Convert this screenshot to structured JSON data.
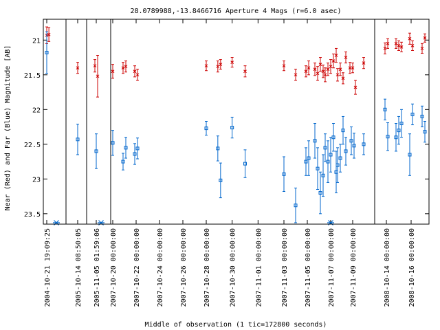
{
  "chart_data": {
    "type": "scatter",
    "title": "28.0789988,-13.8466716   Aperture 4 Mags (r=6.0 asec)",
    "xlabel": "Middle of observation (1 tic=172800 seconds)",
    "ylabel": "Near (Red) and Far (Blue) Magnitude [AB]",
    "y_inverted": true,
    "ylim": [
      20.7,
      23.65
    ],
    "y_ticks": [
      "21",
      "21.5",
      "22",
      "22.5",
      "23",
      "23.5"
    ],
    "x_tick_labels": [
      "2004-10-21 19:09:25",
      "2005-10-14 08:50:05",
      "2005-11-05 01:59:06",
      "2007-10-20 00:00:00",
      "2007-10-22 00:00:00",
      "2007-10-24 00:00:00",
      "2007-10-26 00:00:00",
      "2007-10-28 00:00:00",
      "2007-10-30 00:00:00",
      "2007-11-01 00:00:00",
      "2007-11-03 00:00:00",
      "2007-11-05 00:00:00",
      "2007-11-07 00:00:00",
      "2007-11-09 00:00:00",
      "2008-10-14 00:00:00",
      "2008-10-16 00:00:00"
    ],
    "segment_breaks": [
      "2005-10-14",
      "2005-11-05",
      "2007-10-20",
      "2008-10-14"
    ],
    "grid": false,
    "series": [
      {
        "color": "#cc0000",
        "marker": "x",
        "points": [
          {
            "t": "2004-10-21",
            "y": 20.93,
            "err": 0.12
          },
          {
            "t": "2004-10-22",
            "y": 20.92,
            "err": 0.1
          },
          {
            "t": "2005-10-14",
            "y": 21.4,
            "err": 0.08
          },
          {
            "t": "2005-11-05",
            "y": 21.37,
            "err": 0.09
          },
          {
            "t": "2005-11-05",
            "y": 21.52,
            "err": 0.3
          },
          {
            "t": "2007-10-20",
            "y": 21.45,
            "err": 0.1
          },
          {
            "t": "2007-10-21",
            "y": 21.4,
            "err": 0.08
          },
          {
            "t": "2007-10-21",
            "y": 21.38,
            "err": 0.08
          },
          {
            "t": "2007-10-22",
            "y": 21.45,
            "err": 0.08
          },
          {
            "t": "2007-10-22",
            "y": 21.5,
            "err": 0.08
          },
          {
            "t": "2007-10-28",
            "y": 21.37,
            "err": 0.07
          },
          {
            "t": "2007-10-29",
            "y": 21.38,
            "err": 0.08
          },
          {
            "t": "2007-10-29",
            "y": 21.35,
            "err": 0.07
          },
          {
            "t": "2007-10-30",
            "y": 21.32,
            "err": 0.07
          },
          {
            "t": "2007-10-31",
            "y": 21.45,
            "err": 0.08
          },
          {
            "t": "2007-11-03",
            "y": 21.37,
            "err": 0.07
          },
          {
            "t": "2007-11-04",
            "y": 21.5,
            "err": 0.08
          },
          {
            "t": "2007-11-05",
            "y": 21.45,
            "err": 0.08
          },
          {
            "t": "2007-11-05",
            "y": 21.4,
            "err": 0.1
          },
          {
            "t": "2007-11-06",
            "y": 21.42,
            "err": 0.09
          },
          {
            "t": "2007-11-06",
            "y": 21.48,
            "err": 0.1
          },
          {
            "t": "2007-11-06",
            "y": 21.35,
            "err": 0.1
          },
          {
            "t": "2007-11-06",
            "y": 21.45,
            "err": 0.09
          },
          {
            "t": "2007-11-07",
            "y": 21.5,
            "err": 0.1
          },
          {
            "t": "2007-11-07",
            "y": 21.42,
            "err": 0.09
          },
          {
            "t": "2007-11-07",
            "y": 21.38,
            "err": 0.1
          },
          {
            "t": "2007-11-07",
            "y": 21.3,
            "err": 0.1
          },
          {
            "t": "2007-11-07",
            "y": 21.22,
            "err": 0.1
          },
          {
            "t": "2007-11-08",
            "y": 21.5,
            "err": 0.09
          },
          {
            "t": "2007-11-08",
            "y": 21.42,
            "err": 0.09
          },
          {
            "t": "2007-11-08",
            "y": 21.55,
            "err": 0.08
          },
          {
            "t": "2007-11-08",
            "y": 21.25,
            "err": 0.08
          },
          {
            "t": "2007-11-09",
            "y": 21.4,
            "err": 0.08
          },
          {
            "t": "2007-11-09",
            "y": 21.4,
            "err": 0.07
          },
          {
            "t": "2007-11-09",
            "y": 21.68,
            "err": 0.1
          },
          {
            "t": "2007-11-10",
            "y": 21.33,
            "err": 0.08
          },
          {
            "t": "2008-10-14",
            "y": 21.12,
            "err": 0.08
          },
          {
            "t": "2008-10-14",
            "y": 21.05,
            "err": 0.07
          },
          {
            "t": "2008-10-15",
            "y": 21.05,
            "err": 0.07
          },
          {
            "t": "2008-10-15",
            "y": 21.08,
            "err": 0.07
          },
          {
            "t": "2008-10-15",
            "y": 21.1,
            "err": 0.07
          },
          {
            "t": "2008-10-16",
            "y": 20.98,
            "err": 0.08
          },
          {
            "t": "2008-10-16",
            "y": 21.08,
            "err": 0.07
          },
          {
            "t": "2008-10-17",
            "y": 21.12,
            "err": 0.07
          },
          {
            "t": "2008-10-17",
            "y": 20.97,
            "err": 0.06
          }
        ]
      },
      {
        "color": "#0066cc",
        "marker": "square",
        "points": [
          {
            "t": "2004-10-21",
            "y": 21.18,
            "err": 0.3
          },
          {
            "t": "2005-10-14",
            "y": 22.43,
            "err": 0.22
          },
          {
            "t": "2005-11-05",
            "y": 22.6,
            "err": 0.25
          },
          {
            "t": "2007-10-20",
            "y": 22.48,
            "err": 0.18
          },
          {
            "t": "2007-10-21",
            "y": 22.75,
            "err": 0.12
          },
          {
            "t": "2007-10-21",
            "y": 22.55,
            "err": 0.15
          },
          {
            "t": "2007-10-22",
            "y": 22.64,
            "err": 0.15
          },
          {
            "t": "2007-10-22",
            "y": 22.56,
            "err": 0.15
          },
          {
            "t": "2007-10-28",
            "y": 22.27,
            "err": 0.1
          },
          {
            "t": "2007-10-29",
            "y": 22.56,
            "err": 0.18
          },
          {
            "t": "2007-10-29",
            "y": 23.02,
            "err": 0.25
          },
          {
            "t": "2007-10-30",
            "y": 22.26,
            "err": 0.15
          },
          {
            "t": "2007-10-31",
            "y": 22.78,
            "err": 0.2
          },
          {
            "t": "2007-11-03",
            "y": 22.93,
            "err": 0.25
          },
          {
            "t": "2007-11-04",
            "y": 23.38,
            "err": 0.25
          },
          {
            "t": "2007-11-05",
            "y": 22.75,
            "err": 0.2
          },
          {
            "t": "2007-11-05",
            "y": 22.7,
            "err": 0.25
          },
          {
            "t": "2007-11-06",
            "y": 22.45,
            "err": 0.25
          },
          {
            "t": "2007-11-06",
            "y": 22.85,
            "err": 0.3
          },
          {
            "t": "2007-11-06",
            "y": 23.2,
            "err": 0.3
          },
          {
            "t": "2007-11-06",
            "y": 22.95,
            "err": 0.3
          },
          {
            "t": "2007-11-07",
            "y": 22.55,
            "err": 0.2
          },
          {
            "t": "2007-11-07",
            "y": 22.75,
            "err": 0.3
          },
          {
            "t": "2007-11-07",
            "y": 22.65,
            "err": 0.25
          },
          {
            "t": "2007-11-07",
            "y": 22.4,
            "err": 0.2
          },
          {
            "t": "2007-11-07",
            "y": 22.9,
            "err": 0.3
          },
          {
            "t": "2007-11-08",
            "y": 22.8,
            "err": 0.25
          },
          {
            "t": "2007-11-08",
            "y": 22.7,
            "err": 0.2
          },
          {
            "t": "2007-11-08",
            "y": 22.3,
            "err": 0.2
          },
          {
            "t": "2007-11-08",
            "y": 22.6,
            "err": 0.2
          },
          {
            "t": "2007-11-09",
            "y": 22.45,
            "err": 0.2
          },
          {
            "t": "2007-11-09",
            "y": 22.52,
            "err": 0.18
          },
          {
            "t": "2007-11-10",
            "y": 22.5,
            "err": 0.15
          },
          {
            "t": "2008-10-14",
            "y": 22.0,
            "err": 0.15
          },
          {
            "t": "2008-10-14",
            "y": 22.39,
            "err": 0.2
          },
          {
            "t": "2008-10-15",
            "y": 22.4,
            "err": 0.2
          },
          {
            "t": "2008-10-15",
            "y": 22.3,
            "err": 0.2
          },
          {
            "t": "2008-10-15",
            "y": 22.2,
            "err": 0.2
          },
          {
            "t": "2008-10-16",
            "y": 22.65,
            "err": 0.3
          },
          {
            "t": "2008-10-16",
            "y": 22.07,
            "err": 0.15
          },
          {
            "t": "2008-10-17",
            "y": 22.1,
            "err": 0.15
          },
          {
            "t": "2008-10-17",
            "y": 22.32,
            "err": 0.15
          }
        ]
      }
    ],
    "markers": [
      {
        "t": "2004-10-21",
        "y": 23.65,
        "color": "#0066cc",
        "symbol": "asterisk"
      },
      {
        "t": "2005-11-05",
        "y": 23.65,
        "color": "#0066cc",
        "symbol": "asterisk"
      },
      {
        "t": "2007-11-07",
        "y": 23.65,
        "color": "#0066cc",
        "symbol": "asterisk"
      }
    ]
  }
}
